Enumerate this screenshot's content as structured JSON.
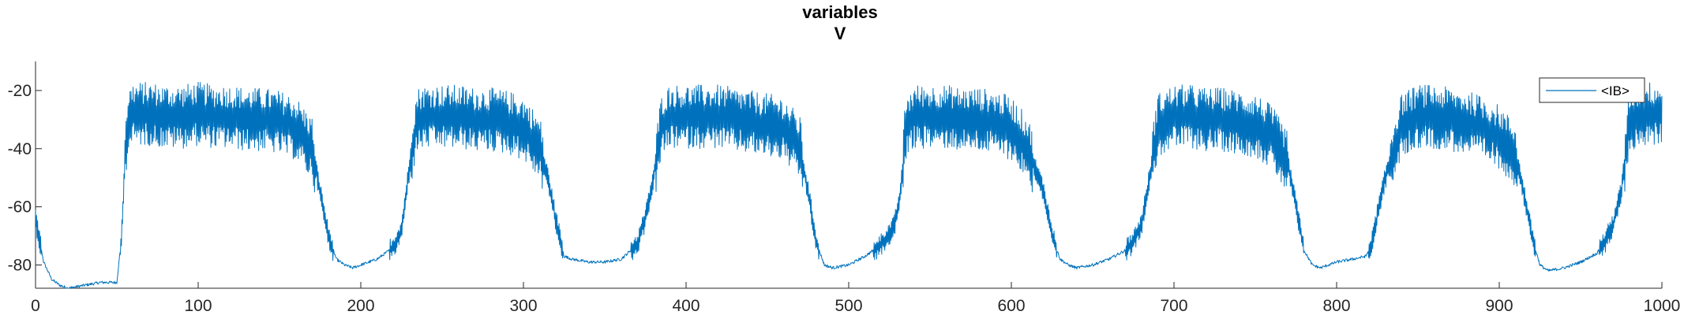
{
  "chart_data": {
    "type": "line",
    "title": "variables",
    "subtitle": "V",
    "xlabel": "",
    "ylabel": "",
    "xlim": [
      0,
      1000
    ],
    "ylim": [
      -88,
      -10
    ],
    "x_ticks": [
      0,
      100,
      200,
      300,
      400,
      500,
      600,
      700,
      800,
      900,
      1000
    ],
    "y_ticks": [
      -80,
      -60,
      -40,
      -20
    ],
    "grid": false,
    "legend_position": "top-right",
    "series": [
      {
        "name": "<IB>",
        "color": "#0072BD",
        "x": [
          0,
          5,
          10,
          15,
          20,
          30,
          40,
          50,
          53,
          55,
          57,
          60,
          70,
          80,
          90,
          100,
          110,
          120,
          130,
          140,
          150,
          160,
          170,
          175,
          180,
          185,
          190,
          195,
          200,
          210,
          220,
          225,
          228,
          232,
          235,
          240,
          250,
          260,
          270,
          280,
          290,
          300,
          310,
          315,
          320,
          325,
          330,
          340,
          350,
          360,
          370,
          375,
          380,
          385,
          390,
          400,
          410,
          420,
          430,
          440,
          450,
          460,
          470,
          475,
          480,
          485,
          490,
          500,
          510,
          520,
          528,
          532,
          535,
          540,
          550,
          560,
          570,
          580,
          590,
          600,
          610,
          620,
          625,
          630,
          635,
          640,
          650,
          660,
          670,
          675,
          680,
          685,
          690,
          700,
          710,
          720,
          730,
          740,
          750,
          760,
          770,
          775,
          780,
          785,
          790,
          800,
          810,
          818,
          822,
          825,
          830,
          840,
          850,
          860,
          870,
          880,
          890,
          900,
          910,
          915,
          920,
          925,
          930,
          940,
          950,
          960,
          965,
          970,
          975,
          980,
          990,
          1000
        ],
        "values": [
          -64,
          -79,
          -85,
          -87,
          -88,
          -87,
          -86,
          -86,
          -70,
          -42,
          -30,
          -28,
          -28,
          -29,
          -29,
          -28,
          -29,
          -29,
          -30,
          -30,
          -31,
          -33,
          -40,
          -55,
          -70,
          -78,
          -80,
          -81,
          -80,
          -78,
          -74,
          -68,
          -55,
          -38,
          -30,
          -29,
          -29,
          -29,
          -30,
          -30,
          -31,
          -33,
          -40,
          -50,
          -65,
          -77,
          -78,
          -79,
          -79,
          -78,
          -73,
          -64,
          -50,
          -32,
          -29,
          -29,
          -29,
          -29,
          -30,
          -31,
          -32,
          -33,
          -40,
          -55,
          -72,
          -80,
          -81,
          -80,
          -77,
          -73,
          -67,
          -55,
          -33,
          -29,
          -29,
          -29,
          -30,
          -30,
          -31,
          -33,
          -40,
          -55,
          -70,
          -78,
          -80,
          -81,
          -80,
          -78,
          -75,
          -72,
          -66,
          -50,
          -32,
          -29,
          -29,
          -30,
          -30,
          -31,
          -32,
          -36,
          -45,
          -60,
          -75,
          -80,
          -81,
          -79,
          -78,
          -77,
          -72,
          -63,
          -50,
          -32,
          -29,
          -29,
          -30,
          -31,
          -33,
          -36,
          -42,
          -55,
          -70,
          -80,
          -82,
          -81,
          -79,
          -76,
          -72,
          -66,
          -55,
          -30,
          -28,
          -28
        ]
      }
    ]
  }
}
